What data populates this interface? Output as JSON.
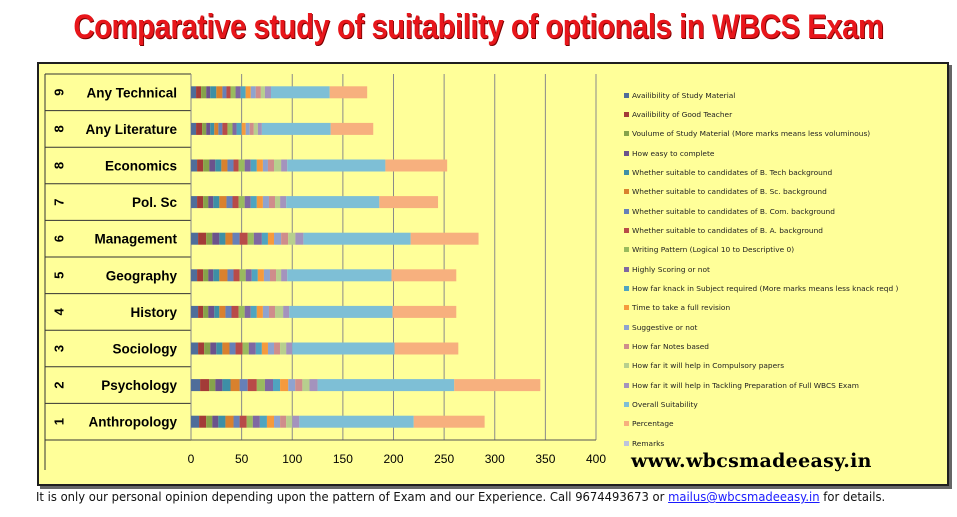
{
  "title": "Comparative study of suitability of optionals in WBCS Exam",
  "website": "www.wbcsmadeeasy.in",
  "footer": {
    "text_before": "It is only our personal opinion depending upon the pattern of Exam and our Experience. Call 9674493673   or ",
    "email": "mailus@wbcsmadeeasy.in",
    "text_after": " for details."
  },
  "colors": {
    "title": "#e8161b",
    "panel": "#ffff99",
    "link": "#1a1aff"
  },
  "chart_data": {
    "type": "bar",
    "orientation": "horizontal",
    "stacked": true,
    "xlim": [
      0,
      400
    ],
    "xticks": [
      0,
      50,
      100,
      150,
      200,
      250,
      300,
      350,
      400
    ],
    "grid": true,
    "legend_position": "right",
    "categories": [
      {
        "num": "1",
        "name": "Anthropology"
      },
      {
        "num": "2",
        "name": "Psychology"
      },
      {
        "num": "3",
        "name": "Sociology"
      },
      {
        "num": "4",
        "name": "History"
      },
      {
        "num": "5",
        "name": "Geography"
      },
      {
        "num": "6",
        "name": "Management"
      },
      {
        "num": "7",
        "name": "Pol. Sc"
      },
      {
        "num": "8",
        "name": "Economics"
      },
      {
        "num": "8",
        "name": "Any Literature"
      },
      {
        "num": "9",
        "name": "Any Technical"
      }
    ],
    "series": [
      {
        "name": "Availibility of Study Material",
        "color": "#4f6d9a",
        "values": [
          8,
          9,
          7,
          7,
          6,
          7,
          6,
          6,
          5,
          5
        ]
      },
      {
        "name": "Availibility of Good Teacher",
        "color": "#a33b38",
        "values": [
          7,
          9,
          6,
          5,
          6,
          8,
          6,
          6,
          6,
          5
        ]
      },
      {
        "name": "Voulume of Study Material (More marks means less voluminous)",
        "color": "#86a34a",
        "values": [
          6,
          6,
          6,
          5,
          5,
          6,
          5,
          6,
          4,
          5
        ]
      },
      {
        "name": "How easy to complete",
        "color": "#6b528c",
        "values": [
          6,
          7,
          6,
          6,
          5,
          7,
          5,
          6,
          4,
          4
        ]
      },
      {
        "name": "Whether suitable to candidates of B. Tech background",
        "color": "#3d8fa6",
        "values": [
          7,
          8,
          6,
          5,
          6,
          6,
          6,
          6,
          4,
          6
        ]
      },
      {
        "name": "Whether suitable to candidates of B. Sc. background",
        "color": "#d9812e",
        "values": [
          8,
          9,
          7,
          6,
          8,
          7,
          7,
          6,
          4,
          6
        ]
      },
      {
        "name": "Whether suitable to candidates of B. Com.  background",
        "color": "#6680b8",
        "values": [
          6,
          8,
          6,
          6,
          6,
          7,
          6,
          6,
          4,
          4
        ]
      },
      {
        "name": "Whether suitable to candidates of B. A.  background",
        "color": "#b84b48",
        "values": [
          7,
          9,
          7,
          7,
          6,
          8,
          6,
          5,
          5,
          4
        ]
      },
      {
        "name": "Writing Pattern  (Logical 10 to Descriptive 0)",
        "color": "#99bb5e",
        "values": [
          6,
          8,
          6,
          6,
          6,
          6,
          6,
          6,
          5,
          5
        ]
      },
      {
        "name": "Highly Scoring or not",
        "color": "#7f67a2",
        "values": [
          7,
          8,
          7,
          6,
          6,
          8,
          6,
          6,
          4,
          5
        ]
      },
      {
        "name": "How far knack in Subject required (More marks means less knack reqd )",
        "color": "#4fa4c0",
        "values": [
          7,
          7,
          6,
          6,
          6,
          6,
          6,
          6,
          5,
          5
        ]
      },
      {
        "name": "Time to take  a full revision",
        "color": "#f59a3d",
        "values": [
          7,
          8,
          6,
          6,
          6,
          6,
          6,
          6,
          4,
          5
        ]
      },
      {
        "name": "Suggestive or not",
        "color": "#8ea3cf",
        "values": [
          6,
          7,
          6,
          6,
          6,
          7,
          6,
          5,
          4,
          5
        ]
      },
      {
        "name": "How far  Notes based",
        "color": "#cf8d8b",
        "values": [
          6,
          7,
          6,
          6,
          6,
          7,
          6,
          6,
          4,
          5
        ]
      },
      {
        "name": "How far it will help in  Compulsory papers",
        "color": "#b7cf8e",
        "values": [
          6,
          7,
          6,
          8,
          5,
          7,
          5,
          7,
          4,
          4
        ]
      },
      {
        "name": "How far it will help in   Tackling  Preparation  of Full WBCS Exam",
        "color": "#a493bd",
        "values": [
          7,
          8,
          6,
          6,
          6,
          8,
          6,
          6,
          4,
          6
        ]
      },
      {
        "name": "Overall Suitability",
        "color": "#7ebfd6",
        "values": [
          113,
          135,
          101,
          102,
          103,
          106,
          92,
          97,
          68,
          58
        ]
      },
      {
        "name": "Percentage",
        "color": "#f7b07e",
        "values": [
          70,
          85,
          63,
          63,
          64,
          67,
          58,
          61,
          42,
          37
        ]
      },
      {
        "name": "Remarks",
        "color": "#bcc3dd",
        "values": [
          0,
          0,
          0,
          0,
          0,
          0,
          0,
          0,
          0,
          0
        ]
      }
    ]
  }
}
